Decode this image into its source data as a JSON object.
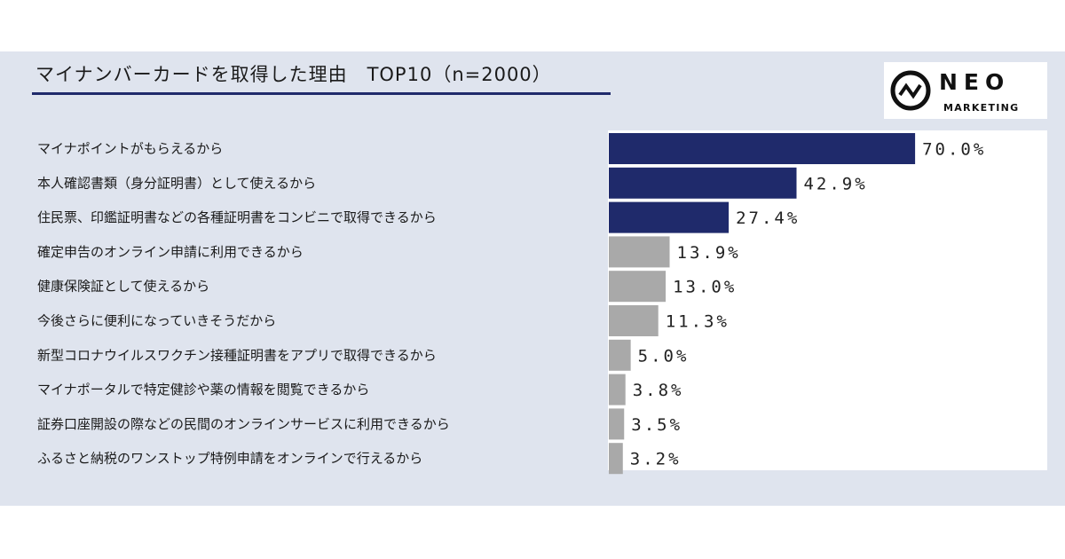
{
  "colors": {
    "panel": "#dfe4ee",
    "highlight_bar": "#1f2a6b",
    "other_bar": "#a9a9a9",
    "title_rule": "#1f2a6b"
  },
  "logo": {
    "name": "NEO",
    "subtitle": "MARKETING",
    "icon": "neo-pulse-circle-icon"
  },
  "chart_data": {
    "type": "bar",
    "orientation": "horizontal",
    "title": "マイナンバーカードを取得した理由　TOP10（n=2000）",
    "categories": [
      "マイナポイントがもらえるから",
      "本人確認書類（身分証明書）として使えるから",
      "住民票、印鑑証明書などの各種証明書をコンビニで取得できるから",
      "確定申告のオンライン申請に利用できるから",
      "健康保険証として使えるから",
      "今後さらに便利になっていきそうだから",
      "新型コロナウイルスワクチン接種証明書をアプリで取得できるから",
      "マイナポータルで特定健診や薬の情報を閲覧できるから",
      "証券口座開設の際などの民間のオンラインサービスに利用できるから",
      "ふるさと納税のワンストップ特例申請をオンラインで行えるから"
    ],
    "values": [
      70.0,
      42.9,
      27.4,
      13.9,
      13.0,
      11.3,
      5.0,
      3.8,
      3.5,
      3.2
    ],
    "value_labels": [
      "70.0%",
      "42.9%",
      "27.4%",
      "13.9%",
      "13.0%",
      "11.3%",
      "5.0%",
      "3.8%",
      "3.5%",
      "3.2%"
    ],
    "highlight_count": 3,
    "xlim": [
      0,
      100
    ],
    "xlabel": "",
    "ylabel": "",
    "grid": false,
    "legend": "none"
  }
}
